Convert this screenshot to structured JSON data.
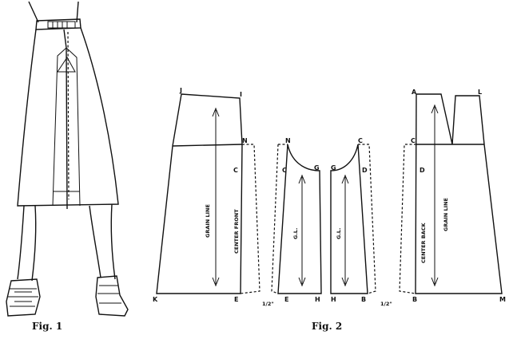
{
  "figure1": {
    "caption": "Fig. 1"
  },
  "figure2": {
    "caption": "Fig. 2",
    "front_piece": {
      "points": [
        "J",
        "I",
        "N",
        "C",
        "K",
        "E"
      ],
      "labels": {
        "grain": "GRAIN LINE",
        "center": "CENTER FRONT"
      }
    },
    "front_panel": {
      "points": [
        "N",
        "C",
        "G",
        "E",
        "H"
      ],
      "grain": "G.L.",
      "allowance": "1/2\""
    },
    "back_panel": {
      "points": [
        "G",
        "C",
        "D",
        "H",
        "B"
      ],
      "grain": "G.L.",
      "allowance": "1/2\""
    },
    "back_piece": {
      "points": [
        "A",
        "L",
        "C",
        "D",
        "B",
        "M"
      ],
      "labels": {
        "center": "CENTER BACK",
        "grain": "GRAIN LINE"
      }
    }
  }
}
